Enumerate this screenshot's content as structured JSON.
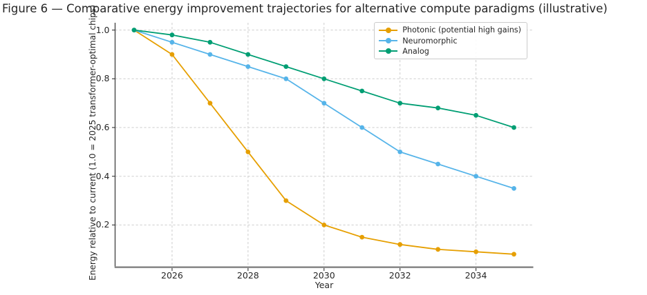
{
  "chart_data": {
    "type": "line",
    "title": "Figure 6 — Comparative energy improvement trajectories for alternative compute paradigms (illustrative)",
    "xlabel": "Year",
    "ylabel": "Energy relative to current (1.0 = 2025 transformer-optimal chips)",
    "x": [
      2025,
      2026,
      2027,
      2028,
      2029,
      2030,
      2031,
      2032,
      2033,
      2034,
      2035
    ],
    "series": [
      {
        "name": "Photonic (potential high gains)",
        "color": "#E69F00",
        "values": [
          1.0,
          0.9,
          0.7,
          0.5,
          0.3,
          0.2,
          0.15,
          0.12,
          0.1,
          0.09,
          0.08
        ]
      },
      {
        "name": "Neuromorphic",
        "color": "#56B4E9",
        "values": [
          1.0,
          0.95,
          0.9,
          0.85,
          0.8,
          0.7,
          0.6,
          0.5,
          0.45,
          0.4,
          0.35
        ]
      },
      {
        "name": "Analog",
        "color": "#009E73",
        "values": [
          1.0,
          0.98,
          0.95,
          0.9,
          0.85,
          0.8,
          0.75,
          0.7,
          0.68,
          0.65,
          0.6
        ]
      }
    ],
    "x_ticks": [
      "2026",
      "2028",
      "2030",
      "2032",
      "2034"
    ],
    "y_ticks": [
      "0.2",
      "0.4",
      "0.6",
      "0.8",
      "1.0"
    ],
    "xlim": [
      2024.5,
      2035.5
    ],
    "ylim": [
      0.03,
      1.03
    ],
    "grid": true,
    "grid_style": "dashed",
    "legend_position": "upper right inside plot",
    "marker": "circle"
  },
  "style": {
    "grid_color": "#cdcdcd",
    "spine_left_color": "#3d3d3d",
    "spine_bottom_color": "#8a8a8a",
    "tick_color": "#333333",
    "text_color": "#262626",
    "background": "#ffffff",
    "legend_border": "#cbcbcb"
  }
}
